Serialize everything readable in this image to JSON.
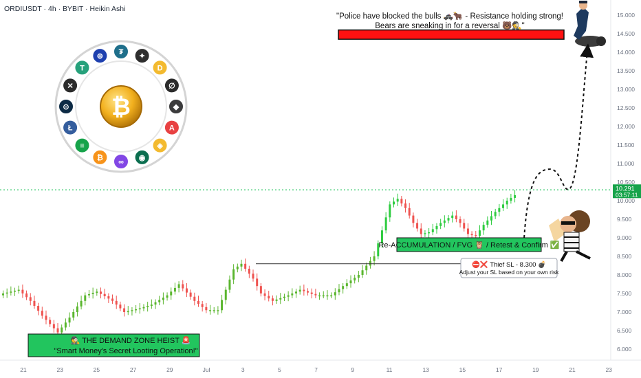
{
  "header": {
    "title": "ORDIUSDT · 4h · BYBIT · Heikin Ashi"
  },
  "colors": {
    "bull": "#26a69a",
    "bull_bright": "#2ecc40",
    "bear": "#ef5350",
    "price_line": "#22c55e",
    "price_tag": "#16a34a",
    "resistance": "#ff1111",
    "zone": "#22c55e"
  },
  "chart_data": {
    "type": "candlestick",
    "style": "Heikin Ashi",
    "symbol": "ORDIUSDT",
    "timeframe": "4h",
    "exchange": "BYBIT",
    "y_axis": {
      "range": [
        5.8,
        15.3
      ],
      "ticks": [
        "15.000",
        "14.500",
        "14.000",
        "13.500",
        "13.000",
        "12.500",
        "12.000",
        "11.500",
        "11.000",
        "10.500",
        "10.000",
        "9.500",
        "9.000",
        "8.500",
        "8.000",
        "7.500",
        "7.000",
        "6.500",
        "6.000"
      ]
    },
    "x_axis": {
      "ticks": [
        "21",
        "23",
        "25",
        "27",
        "29",
        "Jul",
        "3",
        "5",
        "7",
        "9",
        "11",
        "13",
        "15",
        "17",
        "19",
        "21",
        "23"
      ]
    },
    "close_path": [
      [
        0,
        7.5
      ],
      [
        4,
        7.6
      ],
      [
        7,
        7.3
      ],
      [
        10,
        6.9
      ],
      [
        14,
        6.45
      ],
      [
        17,
        6.85
      ],
      [
        21,
        7.45
      ],
      [
        24,
        7.55
      ],
      [
        28,
        7.3
      ],
      [
        31,
        7.0
      ],
      [
        35,
        7.1
      ],
      [
        38,
        7.2
      ],
      [
        42,
        7.45
      ],
      [
        45,
        7.75
      ],
      [
        49,
        7.3
      ],
      [
        52,
        7.05
      ],
      [
        55,
        7.05
      ],
      [
        57,
        7.6
      ],
      [
        59,
        8.15
      ],
      [
        61,
        8.3
      ],
      [
        64,
        7.9
      ],
      [
        66,
        7.5
      ],
      [
        69,
        7.3
      ],
      [
        73,
        7.45
      ],
      [
        76,
        7.6
      ],
      [
        80,
        7.45
      ],
      [
        84,
        7.45
      ],
      [
        87,
        7.7
      ],
      [
        91,
        8.0
      ],
      [
        95,
        8.5
      ],
      [
        97,
        9.2
      ],
      [
        99,
        9.9
      ],
      [
        101,
        10.05
      ],
      [
        103,
        9.8
      ],
      [
        105,
        9.4
      ],
      [
        107,
        9.1
      ],
      [
        109,
        9.15
      ],
      [
        112,
        9.4
      ],
      [
        115,
        9.6
      ],
      [
        117,
        9.4
      ],
      [
        119,
        9.1
      ],
      [
        121,
        9.05
      ],
      [
        123,
        9.35
      ],
      [
        126,
        9.7
      ],
      [
        129,
        10.0
      ],
      [
        131,
        10.15
      ]
    ],
    "current_price": "10.291",
    "countdown": "03:57:11",
    "levels": [
      {
        "name": "resistance",
        "from": 14.35,
        "to": 14.6
      },
      {
        "name": "thief_sl",
        "value": 8.3
      }
    ],
    "annotations": {
      "resistance_note": {
        "line1": "\"Police have blocked the bulls 🚓🐂 - Resistance holding strong!",
        "line2": "Bears are sneaking in for a reversal 🐻🕵\""
      },
      "reaccumulation": "Re-ACCUMULATION / FVG 🦉 / Retest & Confirm ✅",
      "stop_loss": {
        "line1": "⛔❌ Thief SL - 8.300 💣",
        "line2": "Adjust your SL based on your own risk"
      },
      "demand_zone": {
        "line1": "🕵 THE DEMAND ZONE HEIST 🚨",
        "line2": "\"Smart Money's Secret Looting Operation!\""
      }
    }
  }
}
